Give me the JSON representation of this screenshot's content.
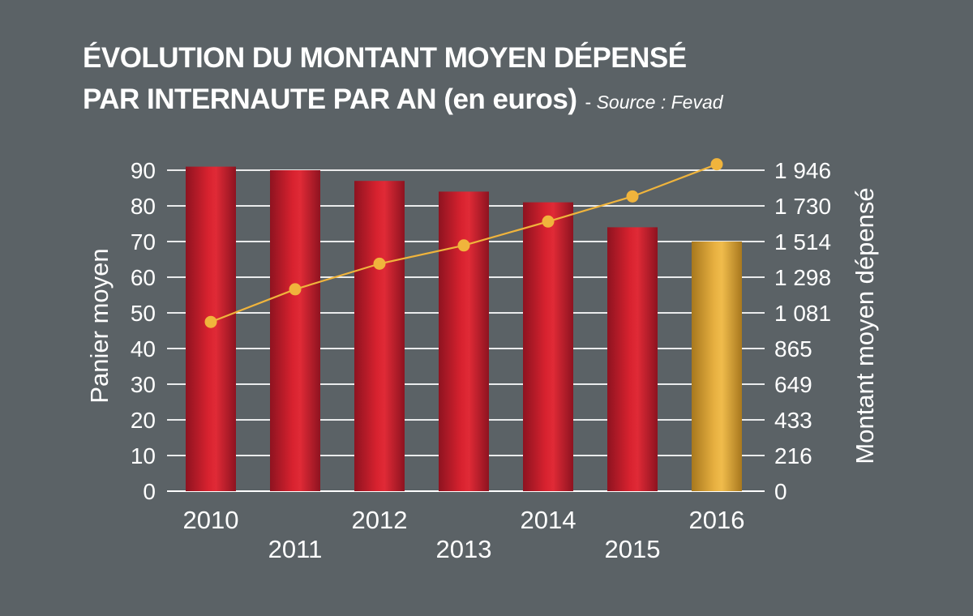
{
  "header": {
    "title_line1": "ÉVOLUTION DU MONTANT MOYEN DÉPENSÉ",
    "title_line2": "PAR INTERNAUTE PAR AN (en euros)",
    "source_dash": "-",
    "source": "Source : Fevad"
  },
  "colors": {
    "background": "#5b6266",
    "bar": "#c8202f",
    "bar_highlight": "#e0a93a",
    "line": "#f0b43c",
    "text": "#ffffff"
  },
  "chart_data": {
    "type": "bar+line",
    "categories": [
      "2010",
      "2011",
      "2012",
      "2013",
      "2014",
      "2015",
      "2016"
    ],
    "series": [
      {
        "axis": "left",
        "type": "bar",
        "values": [
          91,
          90,
          87,
          84,
          81,
          74,
          70
        ]
      },
      {
        "axis": "right",
        "type": "line",
        "values": [
          1026,
          1224,
          1379,
          1490,
          1635,
          1787,
          1982
        ]
      }
    ],
    "highlighted_category": "2016",
    "ylabel_left": "Panier moyen",
    "ylabel_right": "Montant moyen dépensé",
    "yticks_left": [
      "0",
      "10",
      "20",
      "30",
      "40",
      "50",
      "60",
      "70",
      "80",
      "90"
    ],
    "yticks_right": [
      "0",
      "216",
      "433",
      "649",
      "865",
      "1 081",
      "1 298",
      "1 514",
      "1 730",
      "1 946"
    ],
    "ylim_left": [
      0,
      90
    ],
    "ylim_right": [
      0,
      1946
    ],
    "grid": true
  }
}
